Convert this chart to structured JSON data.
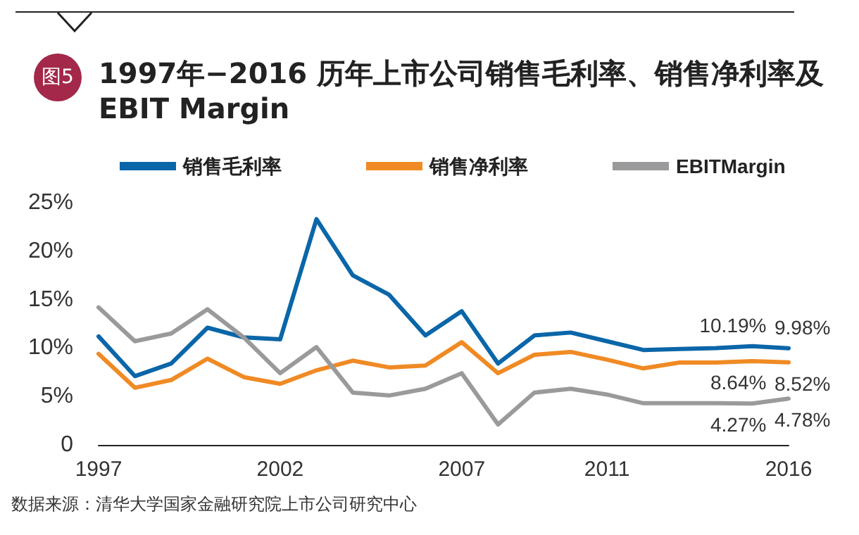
{
  "chart_data": {
    "type": "line",
    "title": "1997年−2016 历年上市公司销售毛利率、销售净利率及EBIT Margin",
    "annotations": [
      "图5",
      "数据来源：清华大学国家金融研究院上市公司研究中心"
    ],
    "categories": [
      "1997",
      null,
      null,
      null,
      null,
      "2002",
      null,
      null,
      null,
      null,
      "2007",
      null,
      null,
      null,
      "2011",
      null,
      null,
      null,
      null,
      "2016"
    ],
    "series": [
      {
        "name": "销售毛利率",
        "color": "#0a66a8",
        "values": [
          11.2,
          7.1,
          8.4,
          12.1,
          11.1,
          10.9,
          23.3,
          17.5,
          15.5,
          11.3,
          13.8,
          8.4,
          11.3,
          11.6,
          10.7,
          9.8,
          9.9,
          10.0,
          10.19,
          9.98
        ],
        "value_labels": [
          null,
          null,
          null,
          null,
          null,
          null,
          null,
          null,
          null,
          null,
          null,
          null,
          null,
          null,
          null,
          null,
          null,
          null,
          "10.19%",
          "9.98%"
        ]
      },
      {
        "name": "销售净利率",
        "color": "#f08a24",
        "values": [
          9.4,
          5.9,
          6.7,
          8.9,
          7.0,
          6.3,
          7.7,
          8.7,
          8.0,
          8.2,
          10.6,
          7.4,
          9.3,
          9.6,
          8.8,
          7.9,
          8.5,
          8.5,
          8.64,
          8.52
        ],
        "value_labels": [
          null,
          null,
          null,
          null,
          null,
          null,
          null,
          null,
          null,
          null,
          null,
          null,
          null,
          null,
          null,
          null,
          null,
          null,
          "8.64%",
          "8.52%"
        ]
      },
      {
        "name": "EBITMargin",
        "color": "#9a9a9c",
        "values": [
          14.2,
          10.7,
          11.5,
          14.0,
          11.1,
          7.4,
          10.1,
          5.4,
          5.1,
          5.8,
          7.4,
          2.1,
          5.4,
          5.8,
          5.2,
          4.3,
          4.3,
          4.3,
          4.27,
          4.78
        ],
        "value_labels": [
          null,
          null,
          null,
          null,
          null,
          null,
          null,
          null,
          null,
          null,
          null,
          null,
          null,
          null,
          null,
          null,
          null,
          null,
          "4.27%",
          "4.78%"
        ]
      }
    ],
    "ylim": [
      0,
      25
    ],
    "yticks": [
      {
        "value": 0,
        "label": "0"
      },
      {
        "value": 5,
        "label": "5%"
      },
      {
        "value": 10,
        "label": "10%"
      },
      {
        "value": 15,
        "label": "15%"
      },
      {
        "value": 20,
        "label": "20%"
      },
      {
        "value": 25,
        "label": "25%"
      }
    ],
    "legend": "top",
    "grid": false,
    "marker": "none",
    "line_style": "solid"
  }
}
